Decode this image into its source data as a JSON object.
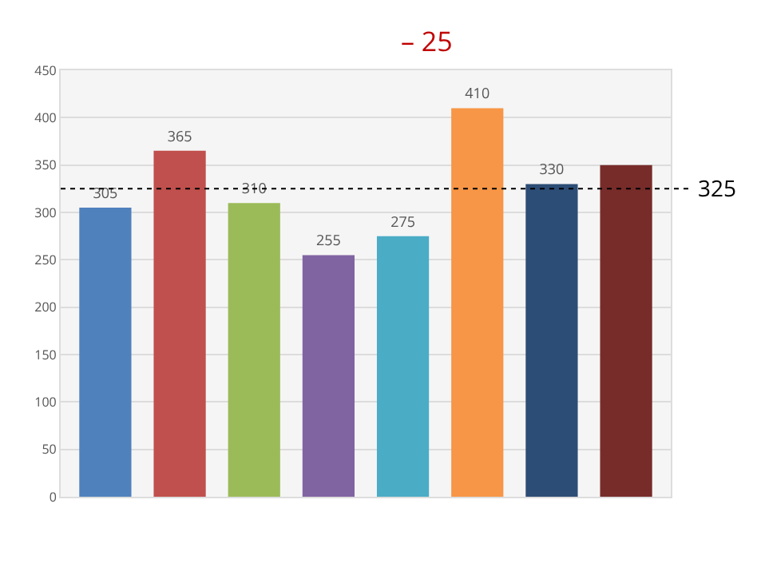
{
  "chart_data": {
    "type": "bar",
    "categories": [
      null,
      null,
      null,
      null,
      null,
      null,
      null,
      null
    ],
    "values": [
      305,
      365,
      310,
      255,
      275,
      410,
      330,
      350
    ],
    "colors": [
      "#4f81bd",
      "#c0504d",
      "#9bbb59",
      "#8064a2",
      "#4bacc6",
      "#f79646",
      "#2c4d75",
      "#772c2a"
    ],
    "value_labels": [
      "305",
      "365",
      "310",
      "255",
      "275",
      "410",
      "330",
      null
    ],
    "ylim": [
      0,
      450
    ],
    "yticks": [
      0,
      50,
      100,
      150,
      200,
      250,
      300,
      350,
      400,
      450
    ],
    "grid": "y",
    "ref_lines": [
      {
        "axis": "y",
        "value": 325,
        "label": "325",
        "color": "#000000",
        "line_style": "dotted"
      }
    ],
    "annotations": [
      "– 25"
    ]
  }
}
